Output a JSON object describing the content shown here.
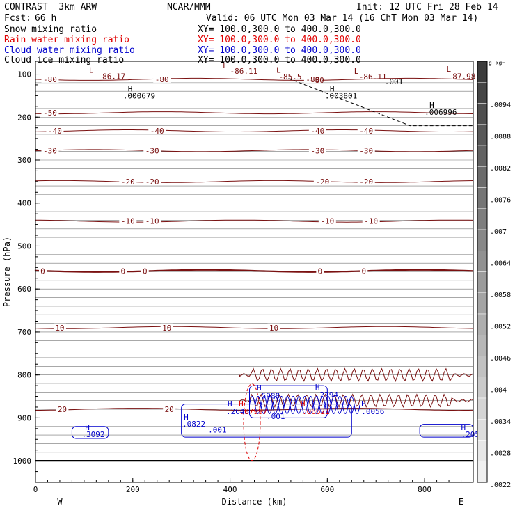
{
  "header": {
    "model": "CONTRAST  3km ARW",
    "org": "NCAR/MMM",
    "init": "Init: 12 UTC Fri 28 Feb 14",
    "fcst_label": "Fcst:",
    "fcst_value": "66 h",
    "valid": "Valid: 06 UTC Mon 03 Mar 14 (16 ChT Mon 03 Mar 14)",
    "fields": [
      {
        "name": "Snow mixing ratio",
        "xy": "XY= 100.0,300.0 to 400.0,300.0",
        "color": "#000000"
      },
      {
        "name": "Rain water mixing ratio",
        "xy": "XY= 100.0,300.0 to 400.0,300.0",
        "color": "#e00000"
      },
      {
        "name": "Cloud water mixing ratio",
        "xy": "XY= 100.0,300.0 to 400.0,300.0",
        "color": "#0000cc"
      },
      {
        "name": "Cloud ice mixing ratio",
        "xy": "XY= 100.0,300.0 to 400.0,300.0",
        "color": "#000000"
      }
    ]
  },
  "chart_data": {
    "type": "contour",
    "xlabel": "Distance (km)",
    "ylabel": "Pressure (hPa)",
    "xlim": [
      0,
      900
    ],
    "ylim": [
      1050,
      70
    ],
    "xticks": [
      0,
      200,
      400,
      600,
      800
    ],
    "yticks": [
      100,
      200,
      300,
      400,
      500,
      600,
      700,
      800,
      900,
      1000
    ],
    "west_label": "W",
    "east_label": "E",
    "temperature_contours": [
      {
        "label": "-80",
        "p": 112,
        "labels_at": [
          30,
          260,
          570
        ]
      },
      {
        "label": "-50",
        "p": 190,
        "labels_at": [
          30
        ]
      },
      {
        "label": "-40",
        "p": 232,
        "labels_at": [
          40,
          250,
          580,
          680
        ]
      },
      {
        "label": "-30",
        "p": 278,
        "labels_at": [
          30,
          240,
          580,
          680
        ]
      },
      {
        "label": "-20",
        "p": 350,
        "labels_at": [
          190,
          240,
          590,
          680
        ]
      },
      {
        "label": "-10",
        "p": 442,
        "labels_at": [
          190,
          240,
          600,
          690
        ]
      },
      {
        "label": "0",
        "p": 558,
        "labels_at": [
          15,
          180,
          225,
          585,
          675
        ]
      },
      {
        "label": "10",
        "p": 690,
        "labels_at": [
          50,
          270,
          490
        ]
      },
      {
        "label": "20",
        "p": 880,
        "labels_at": [
          55,
          275
        ]
      }
    ],
    "colorbar": {
      "unit": "g kg⁻¹",
      "labels": [
        ".0094",
        ".0088",
        ".0082",
        ".0076",
        ".007",
        ".0064",
        ".0058",
        ".0052",
        ".0046",
        ".004",
        ".0034",
        ".0028",
        ".0022"
      ]
    },
    "annotations": [
      {
        "text": "L",
        "x": 110,
        "p": 90,
        "color": "#7a1010"
      },
      {
        "text": "-86.17",
        "x": 128,
        "p": 105,
        "color": "#7a1010"
      },
      {
        "text": "L",
        "x": 385,
        "p": 80,
        "color": "#7a1010"
      },
      {
        "text": "-86.11",
        "x": 400,
        "p": 93,
        "color": "#7a1010"
      },
      {
        "text": "L",
        "x": 495,
        "p": 90,
        "color": "#7a1010"
      },
      {
        "text": "-85.5",
        "x": 500,
        "p": 106,
        "color": "#7a1010"
      },
      {
        "text": "-80",
        "x": 565,
        "p": 114,
        "color": "#7a1010"
      },
      {
        "text": "L",
        "x": 655,
        "p": 93,
        "color": "#7a1010"
      },
      {
        "text": "-86.11",
        "x": 665,
        "p": 106,
        "color": "#7a1010"
      },
      {
        "text": ".001",
        "x": 718,
        "p": 117,
        "color": "#000000"
      },
      {
        "text": "L",
        "x": 845,
        "p": 88,
        "color": "#7a1010"
      },
      {
        "text": "-87.98",
        "x": 848,
        "p": 105,
        "color": "#7a1010"
      },
      {
        "text": "H",
        "x": 190,
        "p": 134,
        "color": "#000000"
      },
      {
        "text": ".000679",
        "x": 180,
        "p": 150,
        "color": "#000000"
      },
      {
        "text": "H",
        "x": 605,
        "p": 134,
        "color": "#000000"
      },
      {
        "text": ".003801",
        "x": 595,
        "p": 150,
        "color": "#000000"
      },
      {
        "text": "H",
        "x": 810,
        "p": 172,
        "color": "#000000"
      },
      {
        "text": ".006996",
        "x": 800,
        "p": 188,
        "color": "#000000"
      },
      {
        "text": "H",
        "x": 102,
        "p": 922,
        "color": "#0000cc"
      },
      {
        "text": ".3092",
        "x": 95,
        "p": 938,
        "color": "#0000cc"
      },
      {
        "text": "H",
        "x": 305,
        "p": 898,
        "color": "#0000cc"
      },
      {
        "text": ".0822",
        "x": 302,
        "p": 914,
        "color": "#0000cc"
      },
      {
        "text": ".001",
        "x": 355,
        "p": 928,
        "color": "#0000cc"
      },
      {
        "text": "H",
        "x": 395,
        "p": 867,
        "color": "#0000cc"
      },
      {
        "text": ".2643",
        "x": 392,
        "p": 885,
        "color": "#0000cc"
      },
      {
        "text": "H",
        "x": 418,
        "p": 867,
        "color": "#e00000"
      },
      {
        "text": ".07997",
        "x": 420,
        "p": 885,
        "color": "#e00000"
      },
      {
        "text": "H",
        "x": 455,
        "p": 830,
        "color": "#0000cc"
      },
      {
        "text": ".5988",
        "x": 455,
        "p": 848,
        "color": "#0000cc"
      },
      {
        "text": ".001",
        "x": 475,
        "p": 896,
        "color": "#0000cc"
      },
      {
        "text": "H",
        "x": 545,
        "p": 867,
        "color": "#e00000"
      },
      {
        "text": ".06621",
        "x": 548,
        "p": 885,
        "color": "#e00000"
      },
      {
        "text": "H",
        "x": 575,
        "p": 828,
        "color": "#0000cc"
      },
      {
        "text": ".2294",
        "x": 575,
        "p": 846,
        "color": "#0000cc"
      },
      {
        "text": "H",
        "x": 670,
        "p": 867,
        "color": "#0000cc"
      },
      {
        "text": ".0056",
        "x": 670,
        "p": 885,
        "color": "#0000cc"
      },
      {
        "text": "H",
        "x": 875,
        "p": 922,
        "color": "#0000cc"
      },
      {
        "text": ".205",
        "x": 875,
        "p": 938,
        "color": "#0000cc"
      }
    ]
  }
}
